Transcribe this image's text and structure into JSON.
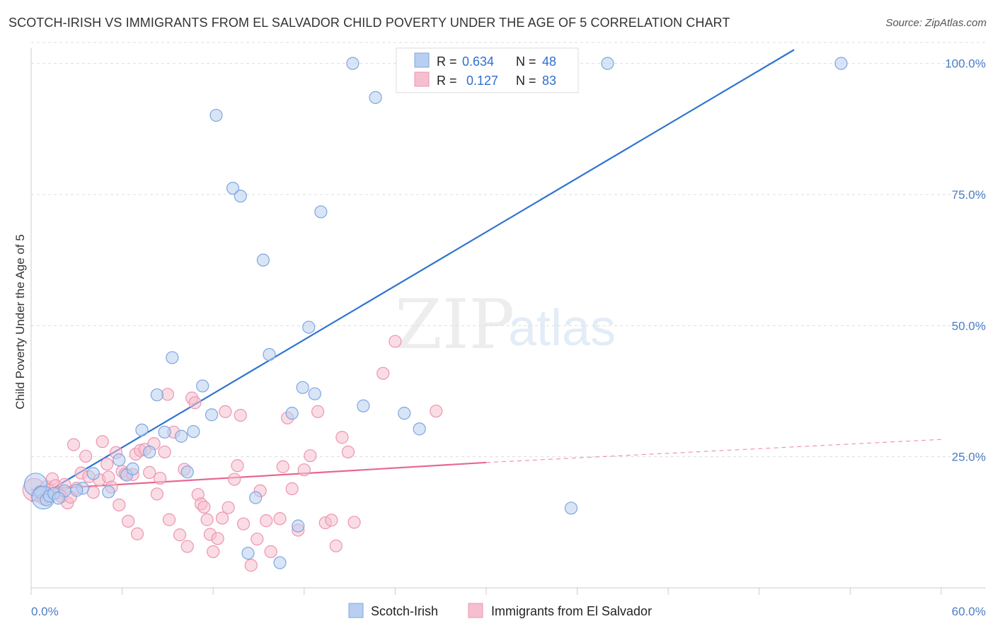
{
  "title": "SCOTCH-IRISH VS IMMIGRANTS FROM EL SALVADOR CHILD POVERTY UNDER THE AGE OF 5 CORRELATION CHART",
  "source": "Source: ZipAtlas.com",
  "watermark": {
    "zip": "ZIP",
    "atlas": "atlas"
  },
  "colors": {
    "blue": "#2f74d0",
    "blue_fill": "#b8cff1",
    "pink": "#e8688f",
    "pink_fill": "#f6bfd0",
    "grid": "#dddddd",
    "tick_text": "#4a7cc4"
  },
  "legend_top": {
    "rows": [
      {
        "r_label": "R =",
        "r_value": "0.634",
        "n_label": "N =",
        "n_value": "48"
      },
      {
        "r_label": "R =",
        "r_value": "0.127",
        "n_label": "N =",
        "n_value": "83"
      }
    ]
  },
  "chart_data": {
    "type": "scatter",
    "ylabel": "Child Poverty Under the Age of 5",
    "xlim": [
      0,
      60
    ],
    "ylim": [
      0,
      104
    ],
    "x_tick_labels": [
      "0.0%",
      "60.0%"
    ],
    "y_ticks": [
      25,
      50,
      75,
      100
    ],
    "y_tick_labels": [
      "25.0%",
      "50.0%",
      "75.0%",
      "100.0%"
    ],
    "legend_placement": "bottom",
    "series": [
      {
        "name": "Scotch-Irish",
        "R": 0.634,
        "N": 48,
        "trend": {
          "x": [
            0.0,
            50.3
          ],
          "y": [
            16.5,
            102.6
          ],
          "style": "solid"
        },
        "points": [
          {
            "x": 0.3,
            "y": 19.7,
            "big": true
          },
          {
            "x": 0.6,
            "y": 18.3
          },
          {
            "x": 0.8,
            "y": 17.2,
            "big": true
          },
          {
            "x": 1.0,
            "y": 16.8
          },
          {
            "x": 1.2,
            "y": 17.5
          },
          {
            "x": 1.5,
            "y": 18.0
          },
          {
            "x": 2.2,
            "y": 18.5
          },
          {
            "x": 3.4,
            "y": 19.0
          },
          {
            "x": 4.1,
            "y": 21.8
          },
          {
            "x": 5.1,
            "y": 18.3
          },
          {
            "x": 5.8,
            "y": 24.4
          },
          {
            "x": 6.3,
            "y": 21.5
          },
          {
            "x": 6.7,
            "y": 22.7
          },
          {
            "x": 7.3,
            "y": 30.1
          },
          {
            "x": 7.8,
            "y": 25.9
          },
          {
            "x": 8.3,
            "y": 36.8
          },
          {
            "x": 8.8,
            "y": 29.7
          },
          {
            "x": 9.3,
            "y": 43.9
          },
          {
            "x": 9.9,
            "y": 28.9
          },
          {
            "x": 10.3,
            "y": 22.1
          },
          {
            "x": 10.7,
            "y": 29.8
          },
          {
            "x": 11.3,
            "y": 38.5
          },
          {
            "x": 11.9,
            "y": 33.0
          },
          {
            "x": 12.2,
            "y": 90.1
          },
          {
            "x": 13.3,
            "y": 76.2
          },
          {
            "x": 13.8,
            "y": 74.7
          },
          {
            "x": 14.3,
            "y": 6.6
          },
          {
            "x": 14.8,
            "y": 17.2
          },
          {
            "x": 15.3,
            "y": 62.5
          },
          {
            "x": 15.7,
            "y": 44.5
          },
          {
            "x": 16.4,
            "y": 4.8
          },
          {
            "x": 17.2,
            "y": 33.3
          },
          {
            "x": 17.6,
            "y": 11.8
          },
          {
            "x": 17.9,
            "y": 38.2
          },
          {
            "x": 18.3,
            "y": 49.7
          },
          {
            "x": 18.7,
            "y": 37.0
          },
          {
            "x": 19.1,
            "y": 71.7
          },
          {
            "x": 21.2,
            "y": 100.0
          },
          {
            "x": 21.9,
            "y": 34.7
          },
          {
            "x": 22.7,
            "y": 93.5
          },
          {
            "x": 24.6,
            "y": 33.3
          },
          {
            "x": 25.6,
            "y": 30.3
          },
          {
            "x": 27.2,
            "y": 100.0
          },
          {
            "x": 35.6,
            "y": 15.2
          },
          {
            "x": 38.0,
            "y": 100.0
          },
          {
            "x": 53.4,
            "y": 100.0
          },
          {
            "x": 1.8,
            "y": 17.1
          },
          {
            "x": 3.0,
            "y": 18.6
          }
        ]
      },
      {
        "name": "Immigrants from El Salvador",
        "R": 0.127,
        "N": 83,
        "trend": {
          "x": [
            0.0,
            30.0
          ],
          "y": [
            18.7,
            23.9
          ],
          "style": "solid"
        },
        "trend_extension": {
          "x": [
            30.0,
            60.0
          ],
          "y": [
            23.9,
            28.3
          ],
          "style": "dashed"
        },
        "points": [
          {
            "x": 0.2,
            "y": 18.7,
            "big": true
          },
          {
            "x": 0.4,
            "y": 17.6
          },
          {
            "x": 0.6,
            "y": 18.2
          },
          {
            "x": 0.8,
            "y": 17.0
          },
          {
            "x": 1.0,
            "y": 19.3
          },
          {
            "x": 1.2,
            "y": 18.6
          },
          {
            "x": 1.4,
            "y": 20.8
          },
          {
            "x": 1.6,
            "y": 19.5
          },
          {
            "x": 1.8,
            "y": 18.1
          },
          {
            "x": 2.0,
            "y": 17.4
          },
          {
            "x": 2.2,
            "y": 19.7
          },
          {
            "x": 2.4,
            "y": 16.2
          },
          {
            "x": 2.6,
            "y": 17.3
          },
          {
            "x": 2.8,
            "y": 27.3
          },
          {
            "x": 3.0,
            "y": 19.0
          },
          {
            "x": 3.3,
            "y": 21.9
          },
          {
            "x": 3.6,
            "y": 25.1
          },
          {
            "x": 3.8,
            "y": 21.2
          },
          {
            "x": 4.1,
            "y": 18.2
          },
          {
            "x": 4.5,
            "y": 20.6
          },
          {
            "x": 4.7,
            "y": 27.9
          },
          {
            "x": 5.0,
            "y": 23.6
          },
          {
            "x": 5.1,
            "y": 21.1
          },
          {
            "x": 5.3,
            "y": 19.2
          },
          {
            "x": 5.6,
            "y": 25.8
          },
          {
            "x": 5.8,
            "y": 15.8
          },
          {
            "x": 6.0,
            "y": 22.2
          },
          {
            "x": 6.2,
            "y": 21.7
          },
          {
            "x": 6.4,
            "y": 12.7
          },
          {
            "x": 6.7,
            "y": 21.6
          },
          {
            "x": 6.9,
            "y": 25.5
          },
          {
            "x": 7.0,
            "y": 10.3
          },
          {
            "x": 7.2,
            "y": 26.2
          },
          {
            "x": 7.5,
            "y": 26.4
          },
          {
            "x": 7.8,
            "y": 22.0
          },
          {
            "x": 8.1,
            "y": 27.5
          },
          {
            "x": 8.3,
            "y": 17.9
          },
          {
            "x": 8.5,
            "y": 20.9
          },
          {
            "x": 8.8,
            "y": 25.9
          },
          {
            "x": 9.0,
            "y": 36.9
          },
          {
            "x": 9.1,
            "y": 13.0
          },
          {
            "x": 9.4,
            "y": 29.7
          },
          {
            "x": 9.8,
            "y": 10.1
          },
          {
            "x": 10.1,
            "y": 22.6
          },
          {
            "x": 10.3,
            "y": 7.9
          },
          {
            "x": 10.6,
            "y": 36.2
          },
          {
            "x": 10.8,
            "y": 35.3
          },
          {
            "x": 11.0,
            "y": 17.8
          },
          {
            "x": 11.2,
            "y": 16.0
          },
          {
            "x": 11.4,
            "y": 15.4
          },
          {
            "x": 11.6,
            "y": 13.0
          },
          {
            "x": 11.8,
            "y": 10.2
          },
          {
            "x": 12.0,
            "y": 6.9
          },
          {
            "x": 12.3,
            "y": 9.4
          },
          {
            "x": 12.6,
            "y": 13.3
          },
          {
            "x": 13.0,
            "y": 15.3
          },
          {
            "x": 13.4,
            "y": 20.7
          },
          {
            "x": 13.6,
            "y": 23.3
          },
          {
            "x": 13.8,
            "y": 32.9
          },
          {
            "x": 14.0,
            "y": 12.2
          },
          {
            "x": 14.5,
            "y": 4.3
          },
          {
            "x": 14.9,
            "y": 9.3
          },
          {
            "x": 15.1,
            "y": 18.5
          },
          {
            "x": 15.5,
            "y": 12.8
          },
          {
            "x": 15.8,
            "y": 6.9
          },
          {
            "x": 16.4,
            "y": 13.2
          },
          {
            "x": 16.6,
            "y": 23.1
          },
          {
            "x": 16.9,
            "y": 32.4
          },
          {
            "x": 17.2,
            "y": 18.9
          },
          {
            "x": 17.6,
            "y": 11.0
          },
          {
            "x": 18.0,
            "y": 22.5
          },
          {
            "x": 18.4,
            "y": 25.2
          },
          {
            "x": 18.9,
            "y": 33.6
          },
          {
            "x": 19.4,
            "y": 12.4
          },
          {
            "x": 19.8,
            "y": 12.9
          },
          {
            "x": 20.1,
            "y": 8.0
          },
          {
            "x": 20.5,
            "y": 28.7
          },
          {
            "x": 20.9,
            "y": 25.9
          },
          {
            "x": 21.3,
            "y": 12.5
          },
          {
            "x": 23.2,
            "y": 40.9
          },
          {
            "x": 24.0,
            "y": 47.0
          },
          {
            "x": 26.7,
            "y": 33.7
          },
          {
            "x": 12.8,
            "y": 33.6
          }
        ]
      }
    ]
  }
}
